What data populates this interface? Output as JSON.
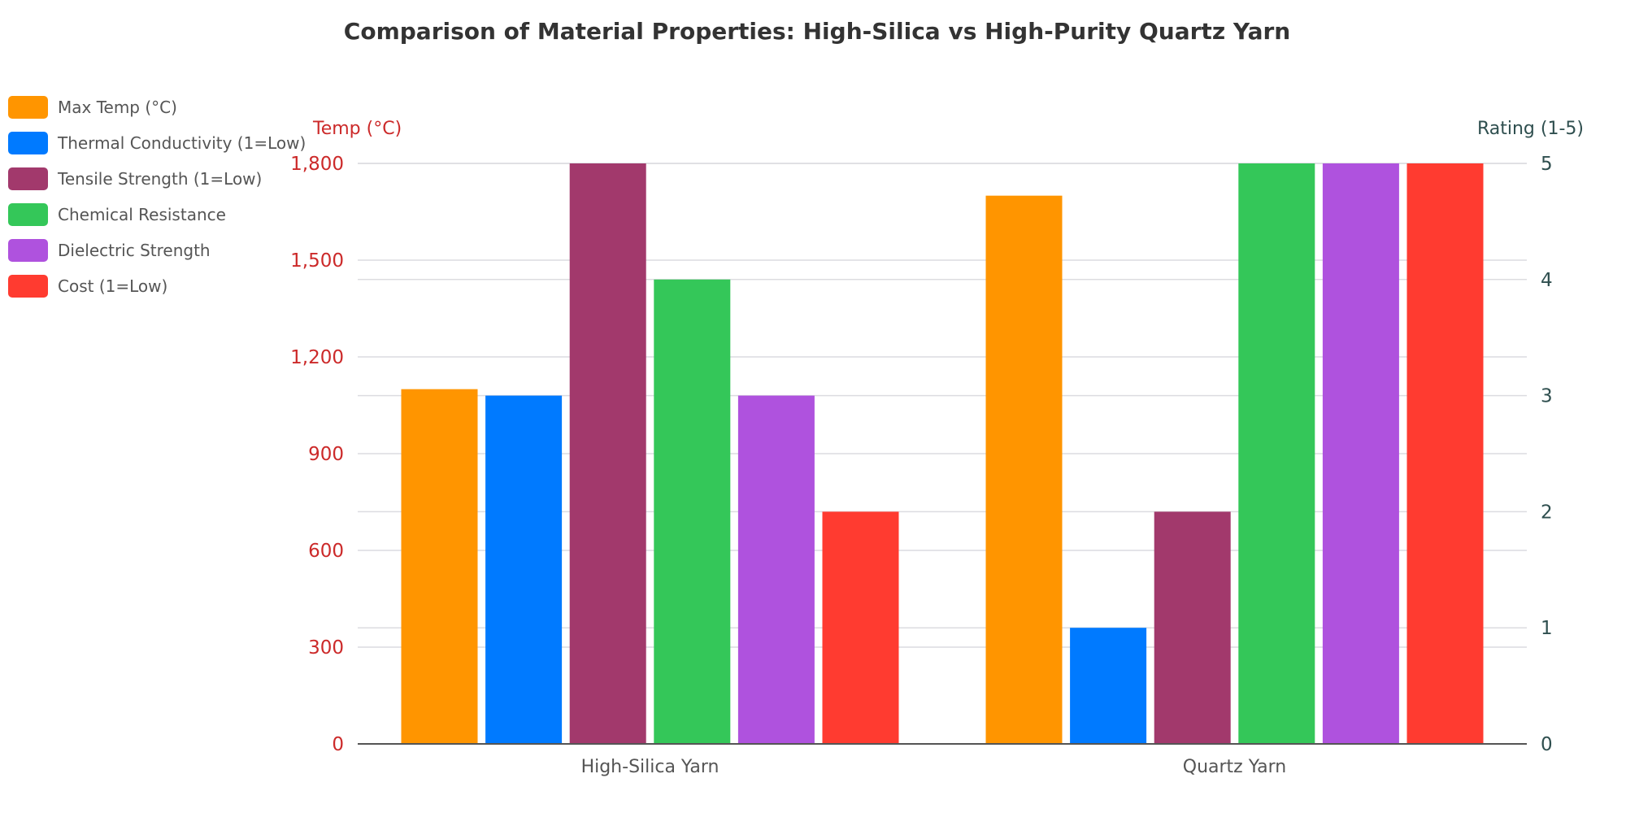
{
  "chart_data": {
    "type": "bar",
    "title": "Comparison of Material Properties: High-Silica vs High-Purity Quartz Yarn",
    "categories": [
      "High-Silica Yarn",
      "Quartz Yarn"
    ],
    "y_left": {
      "label": "Temp (°C)",
      "range": [
        0,
        1800
      ],
      "ticks": [
        "0",
        "300",
        "600",
        "900",
        "1,200",
        "1,500",
        "1,800"
      ],
      "color": "#cc2a2a"
    },
    "y_right": {
      "label": "Rating (1-5)",
      "range": [
        0,
        5
      ],
      "ticks": [
        "0",
        "1",
        "2",
        "3",
        "4",
        "5"
      ],
      "color": "#2f4f4f"
    },
    "grid": true,
    "legend_placement": "top-left",
    "series": [
      {
        "name": "Max Temp (°C)",
        "axis": "left",
        "color": "#ff9500",
        "values": [
          1100,
          1700
        ]
      },
      {
        "name": "Thermal Conductivity (1=Low)",
        "axis": "right",
        "color": "#007aff",
        "values": [
          3,
          1
        ]
      },
      {
        "name": "Tensile Strength (1=Low)",
        "axis": "right",
        "color": "#a2396c",
        "values": [
          5,
          2
        ]
      },
      {
        "name": "Chemical Resistance",
        "axis": "right",
        "color": "#34c759",
        "values": [
          4,
          5
        ]
      },
      {
        "name": "Dielectric Strength",
        "axis": "right",
        "color": "#af52de",
        "values": [
          3,
          5
        ]
      },
      {
        "name": "Cost (1=Low)",
        "axis": "right",
        "color": "#ff3b30",
        "values": [
          2,
          5
        ]
      }
    ]
  }
}
